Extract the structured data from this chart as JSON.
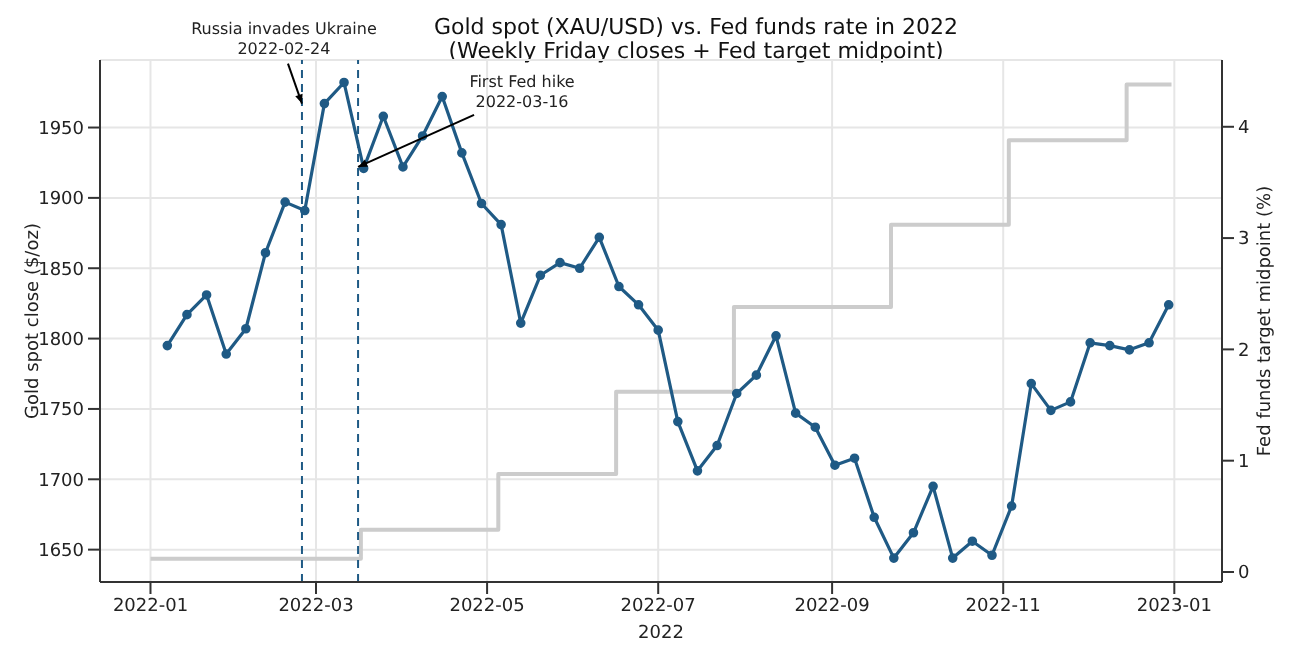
{
  "chart_data": {
    "type": "line",
    "title": "Gold spot (XAU/USD) vs. Fed funds rate in 2022",
    "subtitle": "(Weekly Friday closes + Fed target midpoint)",
    "xlabel": "2022",
    "ylabel": "Gold spot close ($/oz)",
    "y2label": "Fed funds target midpoint (%)",
    "series": [
      {
        "type": "step",
        "axis": "y2",
        "color": "#cccccc",
        "x": [
          "2022-01-01",
          "2022-03-17",
          "2022-05-05",
          "2022-06-16",
          "2022-07-28",
          "2022-09-22",
          "2022-11-03",
          "2022-12-15",
          "2022-12-31"
        ],
        "values": [
          0.12,
          0.38,
          0.88,
          1.62,
          2.38,
          3.12,
          3.88,
          4.38,
          4.38
        ]
      },
      {
        "color": "#1f5a85",
        "marker": "circle",
        "x": [
          "2022-01-07",
          "2022-01-14",
          "2022-01-21",
          "2022-01-28",
          "2022-02-04",
          "2022-02-11",
          "2022-02-18",
          "2022-02-25",
          "2022-03-04",
          "2022-03-11",
          "2022-03-18",
          "2022-03-25",
          "2022-04-01",
          "2022-04-08",
          "2022-04-15",
          "2022-04-22",
          "2022-04-29",
          "2022-05-06",
          "2022-05-13",
          "2022-05-20",
          "2022-05-27",
          "2022-06-03",
          "2022-06-10",
          "2022-06-17",
          "2022-06-24",
          "2022-07-01",
          "2022-07-08",
          "2022-07-15",
          "2022-07-22",
          "2022-07-29",
          "2022-08-05",
          "2022-08-12",
          "2022-08-19",
          "2022-08-26",
          "2022-09-02",
          "2022-09-09",
          "2022-09-16",
          "2022-09-23",
          "2022-09-30",
          "2022-10-07",
          "2022-10-14",
          "2022-10-21",
          "2022-10-28",
          "2022-11-04",
          "2022-11-11",
          "2022-11-18",
          "2022-11-25",
          "2022-12-02",
          "2022-12-09",
          "2022-12-16",
          "2022-12-23",
          "2022-12-30"
        ],
        "values": [
          1795,
          1817,
          1831,
          1789,
          1807,
          1861,
          1897,
          1891,
          1967,
          1982,
          1921,
          1958,
          1922,
          1944,
          1972,
          1932,
          1896,
          1881,
          1811,
          1845,
          1854,
          1850,
          1872,
          1837,
          1824,
          1806,
          1741,
          1706,
          1724,
          1761,
          1774,
          1802,
          1747,
          1737,
          1710,
          1715,
          1673,
          1644,
          1662,
          1695,
          1644,
          1656,
          1646,
          1681,
          1768,
          1749,
          1755,
          1797,
          1795,
          1792,
          1797,
          1824
        ]
      }
    ],
    "xlim": [
      "2021-12-14",
      "2023-01-18"
    ],
    "xticks": [
      {
        "value": "2022-01-01",
        "label": "2022-01"
      },
      {
        "value": "2022-03-01",
        "label": "2022-03"
      },
      {
        "value": "2022-05-01",
        "label": "2022-05"
      },
      {
        "value": "2022-07-01",
        "label": "2022-07"
      },
      {
        "value": "2022-09-01",
        "label": "2022-09"
      },
      {
        "value": "2022-11-01",
        "label": "2022-11"
      },
      {
        "value": "2023-01-01",
        "label": "2023-01"
      }
    ],
    "ylim": [
      1627,
      1998
    ],
    "yticks": [
      1650,
      1700,
      1750,
      1800,
      1850,
      1900,
      1950
    ],
    "y2lim": [
      -0.09,
      4.6
    ],
    "y2ticks": [
      0,
      1,
      2,
      3,
      4
    ],
    "ref_lines": [
      {
        "axis": "x",
        "value": "2022-02-24",
        "color": "#1f5a85",
        "line_style": "dashed"
      },
      {
        "axis": "x",
        "value": "2022-03-16",
        "color": "#1f5a85",
        "line_style": "dashed"
      }
    ],
    "annotations": [
      {
        "text": "Russia invades Ukraine\n2022-02-24",
        "x": "2022-02-24",
        "y": 1967
      },
      {
        "text": "First Fed hike\n2022-03-16",
        "x": "2022-03-16",
        "y": 1922
      }
    ],
    "grid": true
  }
}
